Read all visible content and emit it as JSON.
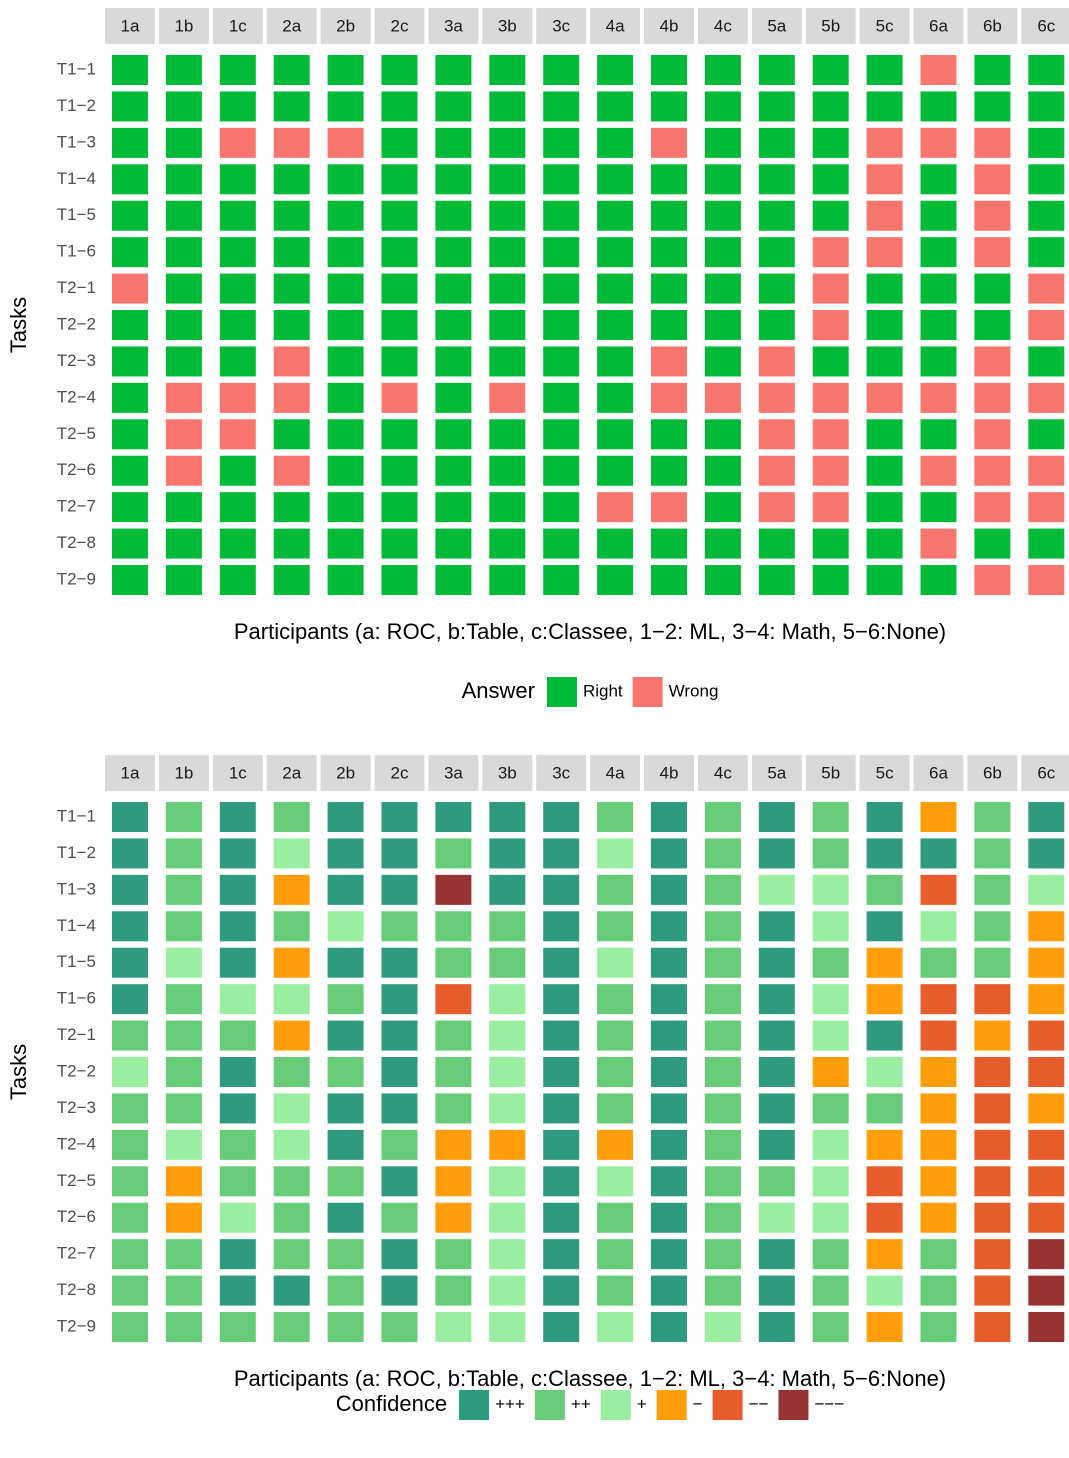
{
  "chart_data": [
    {
      "type": "heatmap",
      "categories": [
        "1a",
        "1b",
        "1c",
        "2a",
        "2b",
        "2c",
        "3a",
        "3b",
        "3c",
        "4a",
        "4b",
        "4c",
        "5a",
        "5b",
        "5c",
        "6a",
        "6b",
        "6c"
      ],
      "rows": [
        "T1−1",
        "T1−2",
        "T1−3",
        "T1−4",
        "T1−5",
        "T1−6",
        "T2−1",
        "T2−2",
        "T2−3",
        "T2−4",
        "T2−5",
        "T2−6",
        "T2−7",
        "T2−8",
        "T2−9"
      ],
      "x_label": "Participants (a: ROC, b:Table, c:Classee, 1−2: ML, 3−4: Math, 5−6:None)",
      "y_label": "Tasks",
      "legend": {
        "title": "Answer",
        "levels": [
          {
            "name": "Right",
            "color": "#00ba38"
          },
          {
            "name": "Wrong",
            "color": "#f8766d"
          }
        ]
      },
      "values": [
        [
          "Right",
          "Right",
          "Right",
          "Right",
          "Right",
          "Right",
          "Right",
          "Right",
          "Right",
          "Right",
          "Right",
          "Right",
          "Right",
          "Right",
          "Right",
          "Wrong",
          "Right",
          "Right"
        ],
        [
          "Right",
          "Right",
          "Right",
          "Right",
          "Right",
          "Right",
          "Right",
          "Right",
          "Right",
          "Right",
          "Right",
          "Right",
          "Right",
          "Right",
          "Right",
          "Right",
          "Right",
          "Right"
        ],
        [
          "Right",
          "Right",
          "Wrong",
          "Wrong",
          "Wrong",
          "Right",
          "Right",
          "Right",
          "Right",
          "Right",
          "Wrong",
          "Right",
          "Right",
          "Right",
          "Wrong",
          "Wrong",
          "Wrong",
          "Right"
        ],
        [
          "Right",
          "Right",
          "Right",
          "Right",
          "Right",
          "Right",
          "Right",
          "Right",
          "Right",
          "Right",
          "Right",
          "Right",
          "Right",
          "Right",
          "Wrong",
          "Right",
          "Wrong",
          "Right"
        ],
        [
          "Right",
          "Right",
          "Right",
          "Right",
          "Right",
          "Right",
          "Right",
          "Right",
          "Right",
          "Right",
          "Right",
          "Right",
          "Right",
          "Right",
          "Wrong",
          "Right",
          "Wrong",
          "Right"
        ],
        [
          "Right",
          "Right",
          "Right",
          "Right",
          "Right",
          "Right",
          "Right",
          "Right",
          "Right",
          "Right",
          "Right",
          "Right",
          "Right",
          "Wrong",
          "Wrong",
          "Right",
          "Wrong",
          "Right"
        ],
        [
          "Wrong",
          "Right",
          "Right",
          "Right",
          "Right",
          "Right",
          "Right",
          "Right",
          "Right",
          "Right",
          "Right",
          "Right",
          "Right",
          "Wrong",
          "Right",
          "Right",
          "Right",
          "Wrong"
        ],
        [
          "Right",
          "Right",
          "Right",
          "Right",
          "Right",
          "Right",
          "Right",
          "Right",
          "Right",
          "Right",
          "Right",
          "Right",
          "Right",
          "Wrong",
          "Right",
          "Right",
          "Right",
          "Wrong"
        ],
        [
          "Right",
          "Right",
          "Right",
          "Wrong",
          "Right",
          "Right",
          "Right",
          "Right",
          "Right",
          "Right",
          "Wrong",
          "Right",
          "Wrong",
          "Right",
          "Right",
          "Right",
          "Wrong",
          "Right"
        ],
        [
          "Right",
          "Wrong",
          "Wrong",
          "Wrong",
          "Right",
          "Wrong",
          "Right",
          "Wrong",
          "Right",
          "Right",
          "Wrong",
          "Wrong",
          "Wrong",
          "Wrong",
          "Wrong",
          "Wrong",
          "Wrong",
          "Wrong"
        ],
        [
          "Right",
          "Wrong",
          "Wrong",
          "Right",
          "Right",
          "Right",
          "Right",
          "Right",
          "Right",
          "Right",
          "Right",
          "Right",
          "Wrong",
          "Wrong",
          "Right",
          "Right",
          "Wrong",
          "Right"
        ],
        [
          "Right",
          "Wrong",
          "Right",
          "Wrong",
          "Right",
          "Right",
          "Right",
          "Right",
          "Right",
          "Right",
          "Right",
          "Right",
          "Wrong",
          "Wrong",
          "Right",
          "Wrong",
          "Wrong",
          "Wrong"
        ],
        [
          "Right",
          "Right",
          "Right",
          "Right",
          "Right",
          "Right",
          "Right",
          "Right",
          "Right",
          "Wrong",
          "Wrong",
          "Right",
          "Wrong",
          "Wrong",
          "Right",
          "Right",
          "Wrong",
          "Wrong"
        ],
        [
          "Right",
          "Right",
          "Right",
          "Right",
          "Right",
          "Right",
          "Right",
          "Right",
          "Right",
          "Right",
          "Right",
          "Right",
          "Right",
          "Right",
          "Right",
          "Wrong",
          "Right",
          "Right"
        ],
        [
          "Right",
          "Right",
          "Right",
          "Right",
          "Right",
          "Right",
          "Right",
          "Right",
          "Right",
          "Right",
          "Right",
          "Right",
          "Right",
          "Right",
          "Right",
          "Right",
          "Wrong",
          "Wrong"
        ]
      ]
    },
    {
      "type": "heatmap",
      "categories": [
        "1a",
        "1b",
        "1c",
        "2a",
        "2b",
        "2c",
        "3a",
        "3b",
        "3c",
        "4a",
        "4b",
        "4c",
        "5a",
        "5b",
        "5c",
        "6a",
        "6b",
        "6c"
      ],
      "rows": [
        "T1−1",
        "T1−2",
        "T1−3",
        "T1−4",
        "T1−5",
        "T1−6",
        "T2−1",
        "T2−2",
        "T2−3",
        "T2−4",
        "T2−5",
        "T2−6",
        "T2−7",
        "T2−8",
        "T2−9"
      ],
      "x_label": "Participants (a: ROC, b:Table, c:Classee, 1−2: ML, 3−4: Math, 5−6:None)",
      "y_label": "Tasks",
      "legend": {
        "title": "Confidence",
        "levels": [
          {
            "name": "+++",
            "color": "#2e9a7e"
          },
          {
            "name": "++",
            "color": "#66cc77"
          },
          {
            "name": "+",
            "color": "#99eea0"
          },
          {
            "name": "−",
            "color": "#ff9d0a"
          },
          {
            "name": "−−",
            "color": "#e65c2a"
          },
          {
            "name": "−−−",
            "color": "#993333"
          }
        ]
      },
      "values": [
        [
          "+++",
          "++",
          "+++",
          "++",
          "+++",
          "+++",
          "+++",
          "+++",
          "+++",
          "++",
          "+++",
          "++",
          "+++",
          "++",
          "+++",
          "−",
          "++",
          "+++"
        ],
        [
          "+++",
          "++",
          "+++",
          "+",
          "+++",
          "+++",
          "++",
          "+++",
          "+++",
          "+",
          "+++",
          "++",
          "+++",
          "++",
          "+++",
          "+++",
          "++",
          "+++"
        ],
        [
          "+++",
          "++",
          "+++",
          "−",
          "+++",
          "+++",
          "−−−",
          "+++",
          "+++",
          "++",
          "+++",
          "++",
          "+",
          "+",
          "++",
          "−−",
          "++",
          "+"
        ],
        [
          "+++",
          "++",
          "+++",
          "++",
          "+",
          "++",
          "++",
          "++",
          "+++",
          "++",
          "+++",
          "++",
          "+++",
          "+",
          "+++",
          "+",
          "++",
          "−"
        ],
        [
          "+++",
          "+",
          "+++",
          "−",
          "+++",
          "+++",
          "++",
          "++",
          "+++",
          "+",
          "+++",
          "++",
          "+++",
          "++",
          "−",
          "++",
          "++",
          "−"
        ],
        [
          "+++",
          "++",
          "+",
          "+",
          "++",
          "+++",
          "−−",
          "+",
          "+++",
          "++",
          "+++",
          "++",
          "+++",
          "+",
          "−",
          "−−",
          "−−",
          "−"
        ],
        [
          "++",
          "++",
          "++",
          "−",
          "+++",
          "+++",
          "++",
          "+",
          "+++",
          "++",
          "+++",
          "++",
          "+++",
          "+",
          "+++",
          "−−",
          "−",
          "−−"
        ],
        [
          "+",
          "++",
          "+++",
          "++",
          "++",
          "+++",
          "++",
          "+",
          "+++",
          "++",
          "+++",
          "++",
          "+++",
          "−",
          "+",
          "−",
          "−−",
          "−−"
        ],
        [
          "++",
          "++",
          "+++",
          "+",
          "+++",
          "+++",
          "++",
          "+",
          "+++",
          "++",
          "+++",
          "++",
          "+++",
          "++",
          "++",
          "−",
          "−−",
          "−"
        ],
        [
          "++",
          "+",
          "++",
          "+",
          "+++",
          "++",
          "−",
          "−",
          "+++",
          "−",
          "+++",
          "++",
          "+++",
          "+",
          "−",
          "−",
          "−−",
          "−−"
        ],
        [
          "++",
          "−",
          "++",
          "++",
          "++",
          "+++",
          "−",
          "+",
          "+++",
          "+",
          "+++",
          "++",
          "++",
          "+",
          "−−",
          "−",
          "−−",
          "−−"
        ],
        [
          "++",
          "−",
          "+",
          "++",
          "+++",
          "++",
          "−",
          "+",
          "+++",
          "++",
          "+++",
          "++",
          "+",
          "+",
          "−−",
          "−",
          "−−",
          "−−"
        ],
        [
          "++",
          "++",
          "+++",
          "++",
          "++",
          "+++",
          "++",
          "+",
          "+++",
          "++",
          "+++",
          "++",
          "+++",
          "++",
          "−",
          "++",
          "−−",
          "−−−"
        ],
        [
          "++",
          "++",
          "+++",
          "+++",
          "++",
          "+++",
          "++",
          "+",
          "+++",
          "++",
          "+++",
          "++",
          "+++",
          "++",
          "+",
          "++",
          "−−",
          "−−−"
        ],
        [
          "++",
          "++",
          "++",
          "++",
          "++",
          "++",
          "+",
          "+",
          "+++",
          "+",
          "+++",
          "+",
          "+++",
          "++",
          "−",
          "++",
          "−−",
          "−−−"
        ]
      ]
    }
  ]
}
